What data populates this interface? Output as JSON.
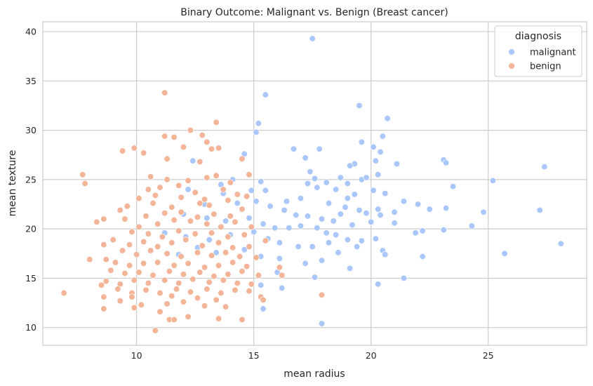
{
  "chart_data": {
    "type": "scatter",
    "title": "Binary Outcome: Malignant vs. Benign (Breast cancer)",
    "xlabel": "mean radius",
    "ylabel": "mean texture",
    "xlim": [
      6.0,
      29.2
    ],
    "ylim": [
      8.2,
      41.0
    ],
    "xticks": [
      10,
      15,
      20,
      25
    ],
    "yticks": [
      10,
      15,
      20,
      25,
      30,
      35,
      40
    ],
    "grid": true,
    "legend": {
      "title": "diagnosis",
      "placement": "top-right"
    },
    "colors": {
      "malignant": "#aac7fb",
      "benign": "#f4b497",
      "grid": "#cccccc",
      "spine": "#cccccc"
    },
    "series": [
      {
        "name": "malignant",
        "points": [
          [
            17.5,
            39.3
          ],
          [
            15.5,
            33.6
          ],
          [
            19.5,
            32.5
          ],
          [
            15.2,
            30.7
          ],
          [
            20.7,
            31.2
          ],
          [
            15.1,
            29.8
          ],
          [
            20.5,
            29.4
          ],
          [
            19.6,
            28.8
          ],
          [
            20.1,
            28.3
          ],
          [
            16.7,
            28.1
          ],
          [
            17.8,
            28.1
          ],
          [
            20.4,
            27.8
          ],
          [
            14.6,
            27.6
          ],
          [
            17.2,
            27.2
          ],
          [
            20.2,
            26.9
          ],
          [
            21.1,
            26.6
          ],
          [
            12.4,
            26.9
          ],
          [
            23.1,
            27.0
          ],
          [
            23.2,
            26.7
          ],
          [
            27.4,
            26.3
          ],
          [
            19.3,
            26.6
          ],
          [
            19.1,
            26.4
          ],
          [
            17.4,
            25.8
          ],
          [
            17.6,
            25.1
          ],
          [
            18.7,
            25.2
          ],
          [
            19.0,
            24.6
          ],
          [
            19.6,
            25.0
          ],
          [
            19.8,
            25.2
          ],
          [
            20.3,
            25.5
          ],
          [
            14.1,
            25.0
          ],
          [
            13.6,
            24.5
          ],
          [
            15.3,
            24.8
          ],
          [
            17.3,
            24.6
          ],
          [
            17.7,
            24.2
          ],
          [
            18.1,
            24.7
          ],
          [
            18.5,
            24.0
          ],
          [
            19.0,
            23.1
          ],
          [
            19.3,
            23.5
          ],
          [
            20.1,
            23.9
          ],
          [
            20.6,
            23.6
          ],
          [
            23.5,
            24.3
          ],
          [
            25.2,
            24.9
          ],
          [
            12.2,
            24.0
          ],
          [
            13.7,
            23.6
          ],
          [
            14.9,
            23.9
          ],
          [
            15.5,
            23.9
          ],
          [
            16.4,
            22.8
          ],
          [
            17.0,
            23.1
          ],
          [
            18.2,
            22.6
          ],
          [
            18.9,
            22.2
          ],
          [
            19.5,
            21.9
          ],
          [
            19.8,
            21.6
          ],
          [
            20.3,
            22.0
          ],
          [
            21.4,
            22.8
          ],
          [
            22.0,
            22.5
          ],
          [
            22.5,
            22.0
          ],
          [
            23.2,
            22.1
          ],
          [
            21.0,
            21.7
          ],
          [
            24.8,
            21.7
          ],
          [
            27.2,
            21.9
          ],
          [
            12.9,
            22.5
          ],
          [
            14.3,
            22.6
          ],
          [
            15.1,
            22.8
          ],
          [
            15.7,
            22.3
          ],
          [
            16.3,
            21.9
          ],
          [
            16.8,
            21.4
          ],
          [
            17.3,
            21.3
          ],
          [
            17.9,
            21.0
          ],
          [
            18.4,
            20.8
          ],
          [
            18.7,
            21.5
          ],
          [
            19.2,
            20.4
          ],
          [
            20.0,
            20.7
          ],
          [
            20.4,
            21.4
          ],
          [
            21.0,
            20.6
          ],
          [
            22.2,
            19.8
          ],
          [
            23.1,
            19.9
          ],
          [
            24.3,
            20.3
          ],
          [
            28.1,
            18.5
          ],
          [
            12.0,
            21.5
          ],
          [
            13.0,
            21.1
          ],
          [
            13.8,
            20.8
          ],
          [
            14.8,
            21.1
          ],
          [
            15.4,
            20.5
          ],
          [
            15.9,
            20.1
          ],
          [
            16.5,
            20.1
          ],
          [
            17.0,
            20.3
          ],
          [
            17.7,
            20.1
          ],
          [
            18.1,
            19.6
          ],
          [
            18.5,
            19.4
          ],
          [
            19.0,
            18.9
          ],
          [
            19.6,
            18.8
          ],
          [
            20.2,
            19.0
          ],
          [
            21.9,
            19.6
          ],
          [
            25.7,
            17.5
          ],
          [
            11.2,
            19.6
          ],
          [
            12.1,
            19.2
          ],
          [
            13.1,
            18.9
          ],
          [
            14.0,
            19.4
          ],
          [
            15.0,
            19.7
          ],
          [
            15.6,
            19.0
          ],
          [
            16.1,
            18.6
          ],
          [
            16.9,
            18.2
          ],
          [
            17.5,
            18.2
          ],
          [
            18.2,
            18.6
          ],
          [
            18.6,
            17.6
          ],
          [
            19.4,
            18.2
          ],
          [
            20.5,
            17.8
          ],
          [
            20.6,
            17.4
          ],
          [
            22.2,
            17.2
          ],
          [
            11.8,
            17.4
          ],
          [
            12.6,
            18.1
          ],
          [
            13.4,
            17.6
          ],
          [
            14.6,
            17.9
          ],
          [
            15.3,
            17.2
          ],
          [
            16.1,
            17.0
          ],
          [
            17.2,
            16.5
          ],
          [
            17.9,
            16.8
          ],
          [
            19.1,
            16.0
          ],
          [
            21.4,
            15.0
          ],
          [
            16.0,
            15.6
          ],
          [
            17.6,
            15.1
          ],
          [
            15.3,
            14.3
          ],
          [
            20.3,
            14.4
          ],
          [
            16.2,
            14.0
          ],
          [
            15.4,
            11.9
          ],
          [
            17.9,
            10.4
          ]
        ]
      },
      {
        "name": "benign",
        "points": [
          [
            11.2,
            33.8
          ],
          [
            13.4,
            30.8
          ],
          [
            12.3,
            30.0
          ],
          [
            11.2,
            29.4
          ],
          [
            11.6,
            29.3
          ],
          [
            12.8,
            29.5
          ],
          [
            13.0,
            28.8
          ],
          [
            9.9,
            28.2
          ],
          [
            9.4,
            27.9
          ],
          [
            10.3,
            27.7
          ],
          [
            12.0,
            28.3
          ],
          [
            13.2,
            28.1
          ],
          [
            13.5,
            28.2
          ],
          [
            11.3,
            27.1
          ],
          [
            14.5,
            27.1
          ],
          [
            12.7,
            26.8
          ],
          [
            7.7,
            25.5
          ],
          [
            7.8,
            24.6
          ],
          [
            10.6,
            25.3
          ],
          [
            11.3,
            25.0
          ],
          [
            11.8,
            24.4
          ],
          [
            12.2,
            24.9
          ],
          [
            13.0,
            25.2
          ],
          [
            13.4,
            25.4
          ],
          [
            14.0,
            24.7
          ],
          [
            14.8,
            25.5
          ],
          [
            10.5,
            24.0
          ],
          [
            11.0,
            24.2
          ],
          [
            12.5,
            23.7
          ],
          [
            13.7,
            24.0
          ],
          [
            14.3,
            23.5
          ],
          [
            10.1,
            23.1
          ],
          [
            10.8,
            23.4
          ],
          [
            11.9,
            23.2
          ],
          [
            12.9,
            23.0
          ],
          [
            13.9,
            22.9
          ],
          [
            14.7,
            23.3
          ],
          [
            9.6,
            22.3
          ],
          [
            10.7,
            22.6
          ],
          [
            11.5,
            22.2
          ],
          [
            12.7,
            22.6
          ],
          [
            13.1,
            22.4
          ],
          [
            14.5,
            22.0
          ],
          [
            9.3,
            21.9
          ],
          [
            10.4,
            21.3
          ],
          [
            11.2,
            21.6
          ],
          [
            11.9,
            21.7
          ],
          [
            12.6,
            21.2
          ],
          [
            13.3,
            21.5
          ],
          [
            14.0,
            21.3
          ],
          [
            8.3,
            20.7
          ],
          [
            8.6,
            21.0
          ],
          [
            9.5,
            21.0
          ],
          [
            10.1,
            20.2
          ],
          [
            10.9,
            20.5
          ],
          [
            11.6,
            20.9
          ],
          [
            12.3,
            20.8
          ],
          [
            13.0,
            20.5
          ],
          [
            13.6,
            20.2
          ],
          [
            14.2,
            20.7
          ],
          [
            14.9,
            20.2
          ],
          [
            9.8,
            19.7
          ],
          [
            10.5,
            19.5
          ],
          [
            11.1,
            19.2
          ],
          [
            11.8,
            19.8
          ],
          [
            12.5,
            19.5
          ],
          [
            13.2,
            19.6
          ],
          [
            13.9,
            19.2
          ],
          [
            14.6,
            19.4
          ],
          [
            9.0,
            18.9
          ],
          [
            9.7,
            18.4
          ],
          [
            10.3,
            18.7
          ],
          [
            10.9,
            18.2
          ],
          [
            11.5,
            18.6
          ],
          [
            12.1,
            18.9
          ],
          [
            12.8,
            18.3
          ],
          [
            13.5,
            18.6
          ],
          [
            14.1,
            18.1
          ],
          [
            14.8,
            18.2
          ],
          [
            15.5,
            18.8
          ],
          [
            8.6,
            18.4
          ],
          [
            9.4,
            17.8
          ],
          [
            10.0,
            17.4
          ],
          [
            10.6,
            17.8
          ],
          [
            11.3,
            17.5
          ],
          [
            11.9,
            17.2
          ],
          [
            12.6,
            17.6
          ],
          [
            13.2,
            17.3
          ],
          [
            13.8,
            17.6
          ],
          [
            14.4,
            17.2
          ],
          [
            15.1,
            17.1
          ],
          [
            8.0,
            16.9
          ],
          [
            8.7,
            16.9
          ],
          [
            9.1,
            16.6
          ],
          [
            9.7,
            16.3
          ],
          [
            10.3,
            16.5
          ],
          [
            10.9,
            16.6
          ],
          [
            11.6,
            16.3
          ],
          [
            12.2,
            16.5
          ],
          [
            12.9,
            16.1
          ],
          [
            13.5,
            16.3
          ],
          [
            14.1,
            16.6
          ],
          [
            14.7,
            16.2
          ],
          [
            16.1,
            16.1
          ],
          [
            8.9,
            15.8
          ],
          [
            9.5,
            15.5
          ],
          [
            10.1,
            15.6
          ],
          [
            10.7,
            15.3
          ],
          [
            11.4,
            15.7
          ],
          [
            12.0,
            15.4
          ],
          [
            12.7,
            15.6
          ],
          [
            13.3,
            15.2
          ],
          [
            13.9,
            15.4
          ],
          [
            14.5,
            15.7
          ],
          [
            15.2,
            15.3
          ],
          [
            16.2,
            15.3
          ],
          [
            8.7,
            14.7
          ],
          [
            9.3,
            14.4
          ],
          [
            9.9,
            14.8
          ],
          [
            10.5,
            14.5
          ],
          [
            11.2,
            14.8
          ],
          [
            11.8,
            14.5
          ],
          [
            12.4,
            14.9
          ],
          [
            13.1,
            14.6
          ],
          [
            13.7,
            14.8
          ],
          [
            14.3,
            14.5
          ],
          [
            14.9,
            14.4
          ],
          [
            8.5,
            14.3
          ],
          [
            9.2,
            13.9
          ],
          [
            9.8,
            13.5
          ],
          [
            10.4,
            13.8
          ],
          [
            11.0,
            13.5
          ],
          [
            11.7,
            13.9
          ],
          [
            12.3,
            13.6
          ],
          [
            13.0,
            13.9
          ],
          [
            13.6,
            13.5
          ],
          [
            14.2,
            13.8
          ],
          [
            14.8,
            13.7
          ],
          [
            6.9,
            13.5
          ],
          [
            8.6,
            13.1
          ],
          [
            9.8,
            13.1
          ],
          [
            11.5,
            13.2
          ],
          [
            12.6,
            13.0
          ],
          [
            13.4,
            12.8
          ],
          [
            15.3,
            13.1
          ],
          [
            17.9,
            13.3
          ],
          [
            9.3,
            12.7
          ],
          [
            10.2,
            12.3
          ],
          [
            11.3,
            12.4
          ],
          [
            12.0,
            12.6
          ],
          [
            12.9,
            12.2
          ],
          [
            13.8,
            12.1
          ],
          [
            15.4,
            12.8
          ],
          [
            8.6,
            11.9
          ],
          [
            9.9,
            12.0
          ],
          [
            11.0,
            11.6
          ],
          [
            12.2,
            11.1
          ],
          [
            11.4,
            10.8
          ],
          [
            11.6,
            10.8
          ],
          [
            13.5,
            10.9
          ],
          [
            14.5,
            10.8
          ],
          [
            10.8,
            9.7
          ]
        ]
      }
    ]
  }
}
